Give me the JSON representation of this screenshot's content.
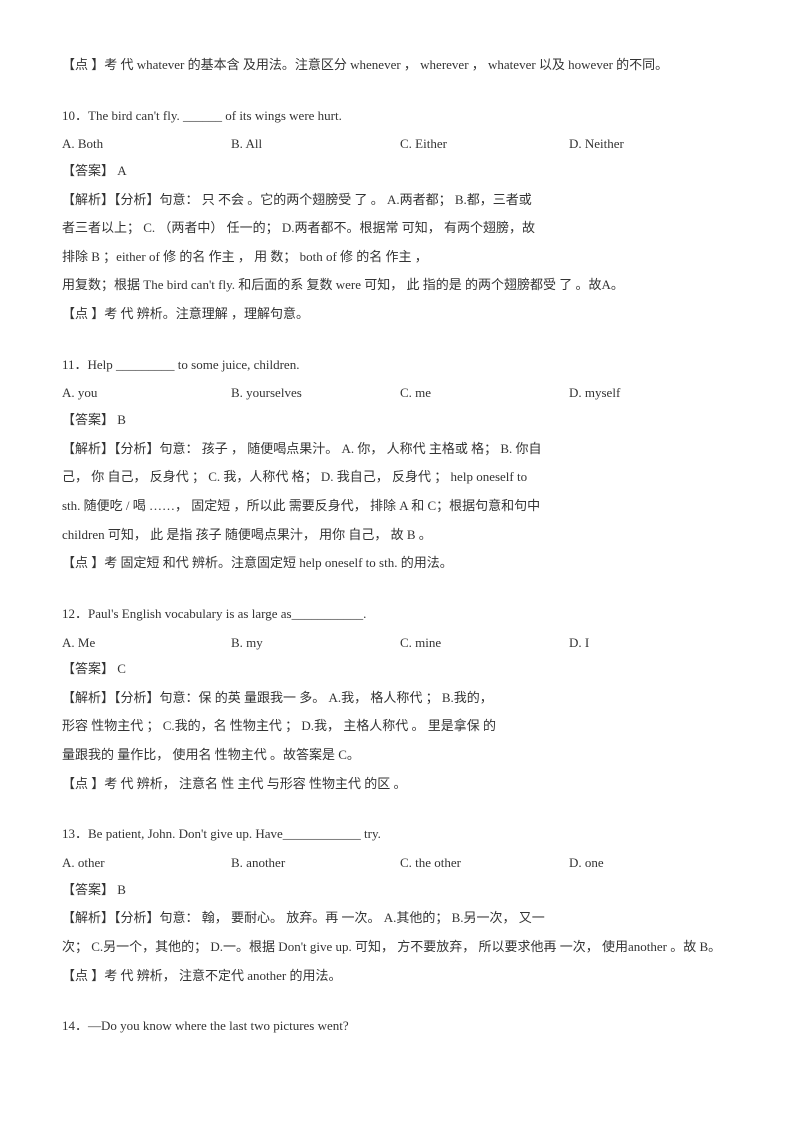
{
  "intro": "【点 】考 代  whatever 的基本含 及用法。注意区分 whenever ， wherever ， whatever 以及 however 的不同。",
  "q10": {
    "question": "10．The bird can't fly. ______ of its wings were hurt.",
    "options": [
      "A. Both",
      "B. All",
      "C. Either",
      "D. Neither"
    ],
    "answer": "【答案】     A",
    "line1": "【解析】【分析】句意：            只 不会   。它的两个翅膀受 了 。                       A.两者都； B.都，三者或",
    "line2": "者三者以上； C. （两者中）         任一的； D.两者都不。根据常 可知，   有两个翅膀，故",
    "line3": "排除 B ；either      of 修 的名 作主 ，   用 数；                              both   of 修 的名 作主 ，",
    "line4": "   用复数；根据 The bird can't fly. 和后面的系   复数 were 可知， 此 指的是 的两个翅膀都受 了 。故A。",
    "line5": "【点 】考 代 辨析。注意理解   ，理解句意。"
  },
  "q11": {
    "question": "11．Help _________ to some juice, children.",
    "options": [
      "A. you",
      "B. yourselves",
      "C. me",
      "D. myself"
    ],
    "answer": "【答案】     B",
    "line1": "【解析】【分析】句意：             孩子 ， 随便喝点果汁。           A. 你， 人称代 主格或 格；           B. 你自",
    "line2": "己， 你 自己， 反身代 ；            C. 我，人称代 格；          D. 我自己， 反身代 ；        help oneself  to",
    "line3": "sth.  随便吃 / 喝 ……， 固定短 ，所以此 需要反身代， 排除                      A 和  C；根据句意和句中",
    "line4": "children   可知， 此 是指 孩子 随便喝点果汁，   用你 自己， 故                              B 。",
    "line5": "【点 】考 固定短 和代 辨析。注意固定短                              help oneself to sth. 的用法。"
  },
  "q12": {
    "question": "12．Paul's English vocabulary is as large as___________.",
    "options": [
      "A. Me",
      "B. my",
      "C. mine",
      "D. I"
    ],
    "answer": "【答案】     C",
    "line1": "【解析】【分析】句意：保 的英   量跟我一 多。                                A.我， 格人称代 ；         B.我的，",
    "line2": "形容 性物主代 ；          C.我的，名 性物主代 ；         D.我， 主格人称代 。 里是拿保 的",
    "line3": " 量跟我的 量作比，  使用名 性物主代 。故答案是                            C。",
    "line4": "【点 】考 代 辨析， 注意名 性 主代 与形容 性物主代 的区 。"
  },
  "q13": {
    "question": "13．Be patient, John. Don't give up. Have____________ try.",
    "options": [
      "A. other",
      "B. another",
      "C. the other",
      "D. one"
    ],
    "answer": "【答案】     B",
    "line1": "【解析】【分析】句意： 翰， 要耐心。 放弃。再 一次。                                A.其他的； B.另一次， 又一",
    "line2": "次； C.另一个，其他的； D.一。根据 Don't give up. 可知，  方不要放弃， 所以要求他再 一次， 使用another 。故  B。",
    "line3": "【点 】考 代 辨析， 注意不定代                   another 的用法。"
  },
  "q14": {
    "question": "14．—Do you know where the last two pictures went?"
  }
}
